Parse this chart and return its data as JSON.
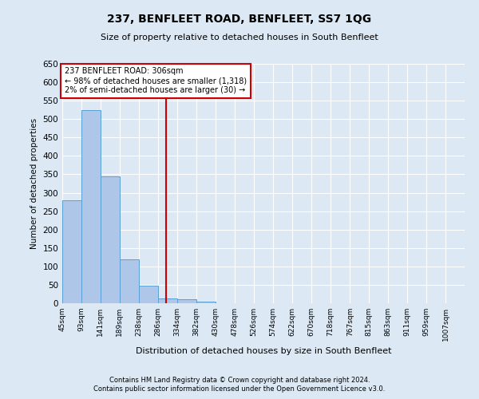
{
  "title": "237, BENFLEET ROAD, BENFLEET, SS7 1QG",
  "subtitle": "Size of property relative to detached houses in South Benfleet",
  "xlabel": "Distribution of detached houses by size in South Benfleet",
  "ylabel": "Number of detached properties",
  "footnote1": "Contains HM Land Registry data © Crown copyright and database right 2024.",
  "footnote2": "Contains public sector information licensed under the Open Government Licence v3.0.",
  "bin_labels": [
    "45sqm",
    "93sqm",
    "141sqm",
    "189sqm",
    "238sqm",
    "286sqm",
    "334sqm",
    "382sqm",
    "430sqm",
    "478sqm",
    "526sqm",
    "574sqm",
    "622sqm",
    "670sqm",
    "718sqm",
    "767sqm",
    "815sqm",
    "863sqm",
    "911sqm",
    "959sqm",
    "1007sqm"
  ],
  "bin_edges": [
    45,
    93,
    141,
    189,
    238,
    286,
    334,
    382,
    430,
    478,
    526,
    574,
    622,
    670,
    718,
    767,
    815,
    863,
    911,
    959,
    1007,
    1055
  ],
  "bar_heights": [
    280,
    525,
    345,
    120,
    47,
    14,
    10,
    5,
    1,
    0,
    0,
    1,
    0,
    0,
    0,
    1,
    0,
    0,
    0,
    1,
    0
  ],
  "bar_color": "#aec6e8",
  "bar_edge_color": "#5a9fd4",
  "property_size": 306,
  "property_line_color": "#cc0000",
  "annotation_text": "237 BENFLEET ROAD: 306sqm\n← 98% of detached houses are smaller (1,318)\n2% of semi-detached houses are larger (30) →",
  "annotation_box_color": "#ffffff",
  "annotation_box_edge_color": "#cc0000",
  "ylim": [
    0,
    650
  ],
  "yticks": [
    0,
    50,
    100,
    150,
    200,
    250,
    300,
    350,
    400,
    450,
    500,
    550,
    600,
    650
  ],
  "background_color": "#dce9f5",
  "plot_bg_color": "#dce9f5",
  "grid_color": "#ffffff"
}
